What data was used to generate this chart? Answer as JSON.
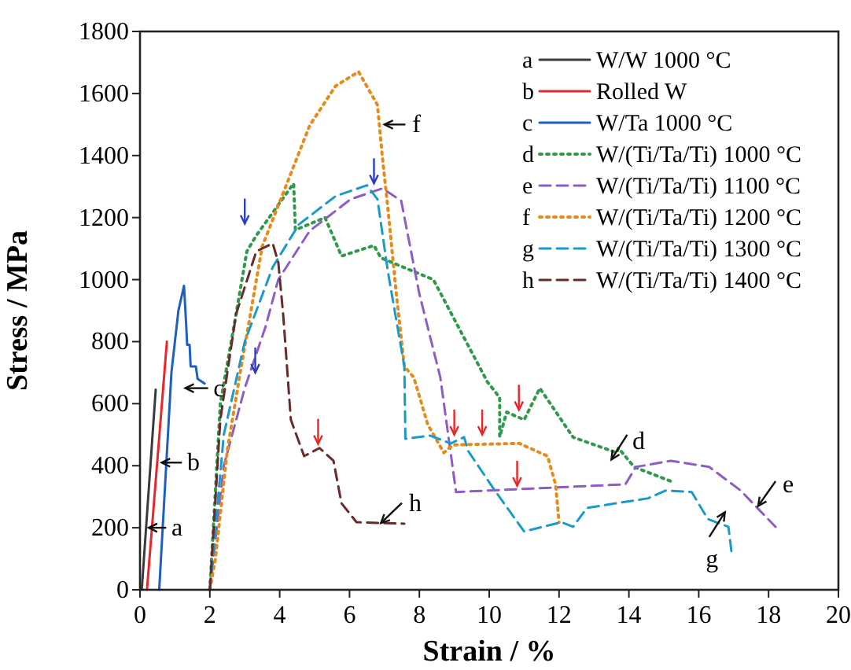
{
  "chart_data": {
    "type": "line",
    "xlabel": "Strain / %",
    "ylabel": "Stress / MPa",
    "xlim": [
      0,
      20
    ],
    "xticks": [
      0,
      2,
      4,
      6,
      8,
      10,
      12,
      14,
      16,
      18,
      20
    ],
    "ylim": [
      0,
      1800
    ],
    "yticks": [
      0,
      200,
      400,
      600,
      800,
      1000,
      1200,
      1400,
      1600,
      1800
    ],
    "grid": false,
    "legend": "top right",
    "marker": "none",
    "series": [
      {
        "name": "W/W 1000 °C",
        "color": "#3a3a3a",
        "line_style": "solid",
        "x": [
          0.05,
          0.45
        ],
        "values": [
          0,
          645
        ]
      },
      {
        "name": "Rolled W",
        "color": "#e8262a",
        "line_style": "solid",
        "x": [
          0.2,
          0.77
        ],
        "values": [
          0,
          800
        ]
      },
      {
        "name": "W/Ta 1000 °C",
        "color": "#1f5fbf",
        "line_style": "solid",
        "x": [
          0.55,
          0.9,
          1.1,
          1.26,
          1.32,
          1.35,
          1.42,
          1.45,
          1.6,
          1.65,
          1.85
        ],
        "values": [
          0,
          700,
          900,
          980,
          860,
          790,
          790,
          720,
          720,
          680,
          665
        ]
      },
      {
        "name": "W/(Ti/Ta/Ti) 1000 °C",
        "color": "#2e9a4a",
        "line_style": "dotted",
        "x": [
          2,
          2.3,
          2.75,
          3.06,
          3.33,
          4.4,
          4.45,
          5.3,
          5.77,
          6.7,
          6.9,
          8.4,
          9.4,
          9.95,
          10.3,
          10.3,
          10.5,
          11.0,
          11.45,
          12.4,
          13.65,
          13.7,
          14.15,
          15.2
        ],
        "values": [
          0,
          600,
          888,
          1091,
          1142,
          1310,
          1160,
          1200,
          1076,
          1110,
          1070,
          1000,
          787,
          670,
          620,
          493,
          573,
          548,
          650,
          492,
          442,
          457,
          396,
          350
        ]
      },
      {
        "name": "W/(Ti/Ta/Ti) 1100 °C",
        "color": "#8e5cc6",
        "line_style": "dashed",
        "x": [
          2,
          2.4,
          3.0,
          3.6,
          3.96,
          4.86,
          6.03,
          6.94,
          7.48,
          8.0,
          8.6,
          9.05,
          9.95,
          13.9,
          14.2,
          15.2,
          16.3,
          17.2,
          18.2
        ],
        "values": [
          0,
          400,
          650,
          850,
          1000,
          1157,
          1259,
          1294,
          1254,
          954,
          685,
          315,
          320,
          340,
          396,
          416,
          396,
          320,
          203
        ]
      },
      {
        "name": "W/(Ti/Ta/Ti) 1200 °C",
        "color": "#e88a1a",
        "line_style": "dotted",
        "x": [
          2,
          2.16,
          2.5,
          2.9,
          3.5,
          4.1,
          4.86,
          5.6,
          6.26,
          6.8,
          6.94,
          7.1,
          7.34,
          7.57,
          7.84,
          8.24,
          8.7,
          8.96,
          10.86,
          11.67,
          11.9,
          12.0
        ],
        "values": [
          0,
          100,
          450,
          720,
          1107,
          1279,
          1497,
          1624,
          1670,
          1563,
          1396,
          1228,
          954,
          720,
          685,
          533,
          442,
          467,
          472,
          431,
          340,
          218
        ]
      },
      {
        "name": "W/(Ti/Ta/Ti) 1300 °C",
        "color": "#1a9ac8",
        "line_style": "dashed",
        "x": [
          2,
          2.4,
          3.0,
          3.8,
          4.55,
          5.6,
          6.5,
          6.8,
          7.1,
          7.57,
          7.6,
          8.3,
          8.9,
          9.28,
          9.4,
          10.1,
          11.0,
          12.07,
          12.4,
          12.8,
          14.55,
          15.05,
          15.8,
          16.26,
          16.85,
          16.95
        ],
        "values": [
          0,
          500,
          800,
          1040,
          1178,
          1269,
          1304,
          1259,
          1025,
          720,
          487,
          497,
          472,
          492,
          447,
          330,
          188,
          218,
          203,
          264,
          295,
          320,
          315,
          228,
          203,
          112
        ]
      },
      {
        "name": "W/(Ti/Ta/Ti) 1400 °C",
        "color": "#6b2a2a",
        "line_style": "dashed",
        "x": [
          2,
          2.3,
          2.75,
          3.33,
          3.8,
          3.96,
          4.1,
          4.32,
          4.7,
          5.14,
          5.54,
          5.77,
          6.2,
          7.57
        ],
        "values": [
          0,
          548,
          888,
          1091,
          1117,
          1056,
          888,
          548,
          431,
          457,
          416,
          279,
          218,
          213
        ]
      }
    ],
    "annotations": [
      "a",
      "b",
      "c",
      "d",
      "e",
      "f",
      "g",
      "h"
    ]
  }
}
